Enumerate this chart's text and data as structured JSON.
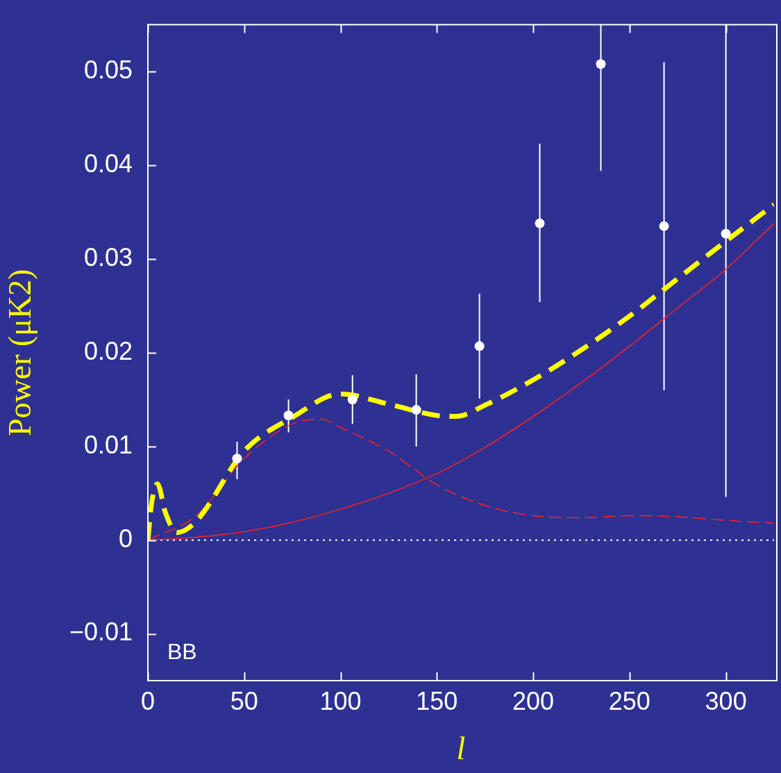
{
  "chart_data": {
    "type": "line",
    "xlabel": "l",
    "ylabel": "Power (μK2)",
    "xlim": [
      0,
      325
    ],
    "ylim": [
      -0.015,
      0.055
    ],
    "xticks": [
      0,
      50,
      100,
      150,
      200,
      250,
      300
    ],
    "yticks": [
      -0.01,
      0,
      0.01,
      0.02,
      0.03,
      0.04,
      0.05
    ],
    "grid": false,
    "legend": false,
    "marker": "none",
    "annotations": [
      "BB"
    ],
    "ref_lines": [
      {
        "axis": "y",
        "value": 0,
        "color": "#ffffff",
        "line_style": "dotted"
      }
    ],
    "series": [
      {
        "type": "line",
        "color": "#ff2020",
        "line_style": "solid",
        "x": [
          0,
          25,
          50,
          75,
          100,
          125,
          150,
          175,
          200,
          225,
          250,
          275,
          300,
          325
        ],
        "values": [
          0,
          0.0003,
          0.0009,
          0.0019,
          0.0033,
          0.005,
          0.0071,
          0.0099,
          0.0132,
          0.0168,
          0.0207,
          0.0248,
          0.0289,
          0.0338
        ]
      },
      {
        "type": "line",
        "color": "#ff2020",
        "line_style": "dashed",
        "x": [
          0,
          25,
          50,
          75,
          90,
          100,
          125,
          150,
          175,
          200,
          225,
          250,
          275,
          300,
          325
        ],
        "values": [
          0,
          0.0026,
          0.0087,
          0.0124,
          0.0129,
          0.012,
          0.0095,
          0.0059,
          0.0037,
          0.0026,
          0.0024,
          0.0026,
          0.0025,
          0.0021,
          0.0018
        ]
      },
      {
        "type": "line",
        "color": "#ffff00",
        "line_style": "dashed",
        "x": [
          0,
          2,
          5,
          9,
          15,
          25,
          50,
          75,
          100,
          125,
          150,
          160,
          175,
          200,
          225,
          250,
          275,
          300,
          325
        ],
        "values": [
          0,
          0.004,
          0.006,
          0.003,
          0.0008,
          0.002,
          0.0095,
          0.0131,
          0.0156,
          0.0145,
          0.0133,
          0.0132,
          0.0144,
          0.0171,
          0.0203,
          0.0239,
          0.0279,
          0.0319,
          0.0358
        ]
      },
      {
        "type": "scatter",
        "color": "#ffffff",
        "marker": "circle",
        "x": [
          46.3,
          73,
          106.2,
          139.3,
          172.1,
          203.4,
          235.1,
          267.9,
          300
        ],
        "values": [
          0.0087,
          0.0133,
          0.015,
          0.0139,
          0.0207,
          0.0338,
          0.0508,
          0.0335,
          0.0327
        ],
        "errors": [
          [
            0.0065,
            0.0105
          ],
          [
            0.0115,
            0.015
          ],
          [
            0.0124,
            0.0176
          ],
          [
            0.01,
            0.0177
          ],
          [
            0.0151,
            0.0263
          ],
          [
            0.0254,
            0.0423
          ],
          [
            0.0394,
            0.055
          ],
          [
            0.016,
            0.051
          ],
          [
            0.0046,
            0.055
          ]
        ]
      }
    ]
  }
}
